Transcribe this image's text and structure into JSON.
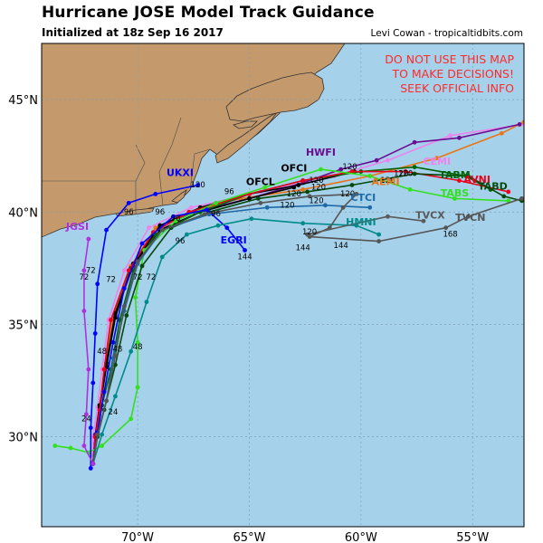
{
  "header": {
    "title": "Hurricane JOSE Model Track Guidance",
    "subtitle": "Initialized at 18z Sep 16 2017",
    "credit": "Levi Cowan - tropicaltidbits.com"
  },
  "warning": [
    "DO NOT USE THIS MAP",
    "TO MAKE DECISIONS!",
    "SEEK OFFICIAL INFO"
  ],
  "colors": {
    "ocean": "#a6d1ea",
    "land": "#c49a6c",
    "grid": "#7f9fb5",
    "warning": "#ff2a2a"
  },
  "axes": {
    "lat_labels": [
      {
        "text": "45°N",
        "lat": 45
      },
      {
        "text": "40°N",
        "lat": 40
      },
      {
        "text": "35°N",
        "lat": 35
      },
      {
        "text": "30°N",
        "lat": 30
      }
    ],
    "lon_labels": [
      {
        "text": "70°W",
        "lon": -70
      },
      {
        "text": "65°W",
        "lon": -65
      },
      {
        "text": "60°W",
        "lon": -60
      },
      {
        "text": "55°W",
        "lon": -55
      }
    ],
    "lat_range": [
      26,
      47.5
    ],
    "lon_range": [
      -74.3,
      -52.7
    ]
  },
  "models": [
    {
      "name": "CEMI",
      "color": "#ee82ee",
      "label_lat": 42.1,
      "label_lon": -56.6,
      "track": [
        [
          28.8,
          -72.0
        ],
        [
          30.0,
          -72.0
        ],
        [
          31.3,
          -71.8
        ],
        [
          33.0,
          -71.6
        ],
        [
          35.2,
          -71.3
        ],
        [
          37.4,
          -70.6
        ],
        [
          39.3,
          -69.5
        ],
        [
          40.2,
          -67.6
        ],
        [
          40.9,
          -64.5
        ],
        [
          41.6,
          -61.2
        ],
        [
          42.3,
          -58.8
        ],
        [
          43.4,
          -56.0
        ],
        [
          43.9,
          -52.7
        ]
      ],
      "points": []
    },
    {
      "name": "AEMI",
      "color": "#e8751a",
      "label_lat": 41.2,
      "label_lon": -58.9,
      "track": [
        [
          28.8,
          -72.0
        ],
        [
          30.0,
          -71.9
        ],
        [
          31.2,
          -71.7
        ],
        [
          33.0,
          -71.5
        ],
        [
          35.3,
          -71.1
        ],
        [
          37.6,
          -70.3
        ],
        [
          39.3,
          -69.2
        ],
        [
          40.0,
          -67.7
        ],
        [
          40.6,
          -65.4
        ],
        [
          41.0,
          -62.6
        ],
        [
          41.6,
          -59.6
        ],
        [
          42.4,
          -56.6
        ],
        [
          43.5,
          -53.7
        ],
        [
          44.0,
          -52.7
        ]
      ],
      "points": [
        {
          "text": "120",
          "lat": 41.6,
          "lon": -58.2
        }
      ]
    },
    {
      "name": "HWFI",
      "color": "#6a0d91",
      "label_lat": 42.5,
      "label_lon": -61.8,
      "track": [
        [
          28.8,
          -72.0
        ],
        [
          30.1,
          -71.9
        ],
        [
          31.4,
          -71.7
        ],
        [
          33.2,
          -71.4
        ],
        [
          35.4,
          -71.0
        ],
        [
          37.6,
          -70.2
        ],
        [
          39.4,
          -69.0
        ],
        [
          40.0,
          -67.5
        ],
        [
          40.6,
          -65.0
        ],
        [
          41.3,
          -62.6
        ],
        [
          41.9,
          -60.9
        ],
        [
          42.3,
          -59.3
        ],
        [
          43.1,
          -57.6
        ],
        [
          43.3,
          -55.6
        ],
        [
          43.9,
          -52.9
        ]
      ],
      "points": [
        {
          "text": "120",
          "lat": 41.9,
          "lon": -60.5
        }
      ]
    },
    {
      "name": "OFCI",
      "color": "#000000",
      "label_lat": 41.8,
      "label_lon": -63.0,
      "track": [
        [
          28.8,
          -72.0
        ],
        [
          30.0,
          -71.9
        ],
        [
          31.4,
          -71.7
        ],
        [
          33.3,
          -71.4
        ],
        [
          35.5,
          -71.0
        ],
        [
          37.7,
          -70.2
        ],
        [
          39.4,
          -69.0
        ],
        [
          40.2,
          -67.2
        ],
        [
          40.8,
          -65.0
        ],
        [
          41.2,
          -62.8
        ],
        [
          41.8,
          -60.3
        ]
      ],
      "points": [
        {
          "text": "120",
          "lat": 41.3,
          "lon": -62.0
        }
      ]
    },
    {
      "name": "OFCL",
      "color": "#000000",
      "label_lat": 41.2,
      "label_lon": -64.5,
      "track": [
        [
          28.8,
          -72.0
        ],
        [
          30.0,
          -71.9
        ],
        [
          31.3,
          -71.7
        ],
        [
          33.1,
          -71.4
        ],
        [
          35.3,
          -71.0
        ],
        [
          37.5,
          -70.3
        ],
        [
          39.2,
          -69.0
        ],
        [
          40.0,
          -67.2
        ],
        [
          40.6,
          -65.0
        ],
        [
          41.1,
          -63.0
        ]
      ],
      "points": [
        {
          "text": "120",
          "lat": 40.7,
          "lon": -63.0
        }
      ]
    },
    {
      "name": "TABM",
      "color": "#006400",
      "label_lat": 41.5,
      "label_lon": -55.8,
      "track": [
        [
          28.8,
          -72.0
        ],
        [
          30.1,
          -71.8
        ],
        [
          31.4,
          -71.6
        ],
        [
          33.0,
          -71.2
        ],
        [
          35.2,
          -70.8
        ],
        [
          37.4,
          -70.2
        ],
        [
          39.0,
          -69.2
        ],
        [
          40.0,
          -67.2
        ],
        [
          40.8,
          -65.0
        ],
        [
          41.4,
          -62.6
        ],
        [
          41.8,
          -60.0
        ],
        [
          42.0,
          -57.6
        ],
        [
          41.6,
          -55.3
        ],
        [
          41.0,
          -54.2
        ]
      ],
      "points": [
        {
          "text": "120",
          "lat": 41.6,
          "lon": -58.0
        }
      ]
    },
    {
      "name": "AVNI",
      "color": "#e8001c",
      "label_lat": 41.3,
      "label_lon": -54.8,
      "track": [
        [
          28.8,
          -72.0
        ],
        [
          30.0,
          -71.9
        ],
        [
          31.2,
          -71.7
        ],
        [
          33.0,
          -71.5
        ],
        [
          35.2,
          -71.2
        ],
        [
          37.4,
          -70.4
        ],
        [
          39.1,
          -69.3
        ],
        [
          40.0,
          -67.7
        ],
        [
          40.8,
          -65.0
        ],
        [
          41.4,
          -62.6
        ],
        [
          41.8,
          -60.4
        ],
        [
          41.8,
          -58.0
        ],
        [
          41.4,
          -55.6
        ],
        [
          40.9,
          -53.4
        ]
      ],
      "points": [
        {
          "text": "120",
          "lat": 41.3,
          "lon": -58.8
        }
      ]
    },
    {
      "name": "TABS",
      "color": "#32e01e",
      "label_lat": 40.7,
      "label_lon": -55.8,
      "track": [
        [
          29.6,
          -73.7
        ],
        [
          29.5,
          -73.0
        ],
        [
          29.3,
          -72.2
        ],
        [
          29.6,
          -71.6
        ],
        [
          30.8,
          -70.3
        ],
        [
          32.2,
          -70.0
        ],
        [
          34.2,
          -70.0
        ],
        [
          36.2,
          -70.1
        ],
        [
          38.3,
          -69.7
        ],
        [
          39.6,
          -68.3
        ],
        [
          40.4,
          -66.5
        ],
        [
          41.1,
          -64.3
        ],
        [
          41.9,
          -61.8
        ],
        [
          41.6,
          -59.6
        ],
        [
          41.0,
          -57.8
        ],
        [
          40.6,
          -55.8
        ],
        [
          40.5,
          -53.4
        ]
      ],
      "points": []
    },
    {
      "name": "TABD",
      "color": "#054a0a",
      "label_lat": 41.0,
      "label_lon": -54.1,
      "track": [
        [
          28.8,
          -72.0
        ],
        [
          30.0,
          -71.8
        ],
        [
          31.2,
          -71.5
        ],
        [
          33.2,
          -71.0
        ],
        [
          35.4,
          -70.5
        ],
        [
          37.6,
          -69.8
        ],
        [
          39.3,
          -68.5
        ],
        [
          40.0,
          -66.8
        ],
        [
          40.6,
          -64.6
        ],
        [
          40.9,
          -62.4
        ],
        [
          41.2,
          -60.4
        ],
        [
          41.7,
          -57.6
        ],
        [
          41.6,
          -55.2
        ],
        [
          40.7,
          -53.6
        ],
        [
          40.5,
          -52.8
        ]
      ],
      "points": []
    },
    {
      "name": "UKXI",
      "color": "#0000ff",
      "label_lat": 41.6,
      "label_lon": -68.1,
      "track": [
        [
          28.6,
          -72.1
        ],
        [
          30.4,
          -72.1
        ],
        [
          32.4,
          -72.0
        ],
        [
          34.6,
          -71.9
        ],
        [
          36.8,
          -71.8
        ],
        [
          39.2,
          -71.4
        ],
        [
          40.4,
          -70.4
        ],
        [
          40.8,
          -69.2
        ],
        [
          41.2,
          -67.3
        ]
      ],
      "points": [
        {
          "text": "96",
          "lat": 39.9,
          "lon": -70.4
        }
      ]
    },
    {
      "name": "CTCI",
      "color": "#1e6aa8",
      "label_lat": 40.5,
      "label_lon": -59.9,
      "track": [
        [
          28.8,
          -72.0
        ],
        [
          30.1,
          -71.8
        ],
        [
          31.6,
          -71.4
        ],
        [
          33.5,
          -71.1
        ],
        [
          35.6,
          -70.6
        ],
        [
          37.7,
          -70.0
        ],
        [
          39.2,
          -68.9
        ],
        [
          39.9,
          -66.8
        ],
        [
          40.2,
          -64.2
        ],
        [
          40.3,
          -61.6
        ],
        [
          40.2,
          -59.6
        ]
      ],
      "points": [
        {
          "text": "120",
          "lat": 40.4,
          "lon": -62.0
        }
      ]
    },
    {
      "name": "EGRI",
      "color": "#0000ff",
      "label_lat": 38.6,
      "label_lon": -65.7,
      "track": [
        [
          28.8,
          -72.0
        ],
        [
          30.2,
          -71.8
        ],
        [
          32.0,
          -71.5
        ],
        [
          34.2,
          -71.1
        ],
        [
          36.6,
          -70.6
        ],
        [
          38.6,
          -69.8
        ],
        [
          39.8,
          -68.4
        ],
        [
          40.1,
          -66.9
        ],
        [
          39.3,
          -66.0
        ],
        [
          38.3,
          -65.2
        ]
      ],
      "points": [
        {
          "text": "144",
          "lat": 37.9,
          "lon": -65.2
        }
      ]
    },
    {
      "name": "HMNI",
      "color": "#008b8b",
      "label_lat": 39.4,
      "label_lon": -60.0,
      "track": [
        [
          28.8,
          -72.0
        ],
        [
          30.1,
          -71.6
        ],
        [
          31.8,
          -71.0
        ],
        [
          33.8,
          -70.3
        ],
        [
          36.0,
          -69.6
        ],
        [
          38.0,
          -68.9
        ],
        [
          39.0,
          -67.8
        ],
        [
          39.4,
          -66.4
        ],
        [
          39.7,
          -64.9
        ],
        [
          39.5,
          -62.6
        ],
        [
          39.4,
          -60.2
        ],
        [
          39.0,
          -59.2
        ]
      ],
      "points": [
        {
          "text": "120",
          "lat": 39.0,
          "lon": -62.3
        },
        {
          "text": "96",
          "lat": 38.6,
          "lon": -68.1
        }
      ]
    },
    {
      "name": "TVCN",
      "color": "#555555",
      "label_lat": 39.6,
      "label_lon": -55.1,
      "track": [
        [
          28.8,
          -72.0
        ],
        [
          30.1,
          -71.8
        ],
        [
          31.6,
          -71.4
        ],
        [
          33.6,
          -71.0
        ],
        [
          35.8,
          -70.6
        ],
        [
          37.8,
          -70.0
        ],
        [
          39.2,
          -68.9
        ],
        [
          39.9,
          -67.0
        ],
        [
          40.4,
          -64.5
        ],
        [
          40.7,
          -62.3
        ],
        [
          40.8,
          -60.2
        ],
        [
          40.2,
          -60.8
        ],
        [
          39.3,
          -61.4
        ],
        [
          38.9,
          -62.3
        ],
        [
          38.7,
          -59.2
        ],
        [
          39.3,
          -56.2
        ],
        [
          39.8,
          -55.2
        ],
        [
          40.6,
          -52.8
        ]
      ],
      "points": [
        {
          "text": "144",
          "lat": 38.4,
          "lon": -60.9
        },
        {
          "text": "144",
          "lat": 38.3,
          "lon": -62.6
        },
        {
          "text": "168",
          "lat": 38.9,
          "lon": -56.0
        }
      ]
    },
    {
      "name": "TVCX",
      "color": "#5a5a5a",
      "label_lat": 39.7,
      "label_lon": -56.9,
      "track": [
        [
          39.0,
          -62.4
        ],
        [
          39.8,
          -58.8
        ],
        [
          39.6,
          -57.2
        ]
      ],
      "points": []
    },
    {
      "name": "JGSI",
      "color": "#b030e0",
      "label_lat": 39.2,
      "label_lon": -72.7,
      "track": [
        [
          28.8,
          -72.0
        ],
        [
          29.6,
          -72.4
        ],
        [
          31.0,
          -72.3
        ],
        [
          33.0,
          -72.2
        ],
        [
          35.6,
          -72.4
        ],
        [
          37.4,
          -72.4
        ],
        [
          38.8,
          -72.2
        ]
      ],
      "points": []
    }
  ],
  "track_labels": [
    {
      "text": "72",
      "lat": 37.0,
      "lon": -72.4
    },
    {
      "text": "72",
      "lat": 37.3,
      "lon": -72.1
    },
    {
      "text": "72",
      "lat": 37.0,
      "lon": -70.0
    },
    {
      "text": "72",
      "lat": 37.0,
      "lon": -69.4
    },
    {
      "text": "72",
      "lat": 36.9,
      "lon": -71.2
    },
    {
      "text": "48",
      "lat": 33.9,
      "lon": -70.0
    },
    {
      "text": "48",
      "lat": 33.8,
      "lon": -70.9
    },
    {
      "text": "48",
      "lat": 33.7,
      "lon": -71.6
    },
    {
      "text": "24",
      "lat": 31.0,
      "lon": -71.1
    },
    {
      "text": "24",
      "lat": 30.7,
      "lon": -72.3
    },
    {
      "text": "96",
      "lat": 39.9,
      "lon": -69.0
    },
    {
      "text": "96",
      "lat": 39.6,
      "lon": -68.3
    },
    {
      "text": "96",
      "lat": 39.8,
      "lon": -66.5
    },
    {
      "text": "96",
      "lat": 40.8,
      "lon": -65.9
    },
    {
      "text": "120",
      "lat": 40.2,
      "lon": -63.3
    },
    {
      "text": "120",
      "lat": 40.7,
      "lon": -60.6
    },
    {
      "text": "120",
      "lat": 41.0,
      "lon": -61.9
    },
    {
      "text": "120",
      "lat": 41.1,
      "lon": -67.3
    }
  ]
}
